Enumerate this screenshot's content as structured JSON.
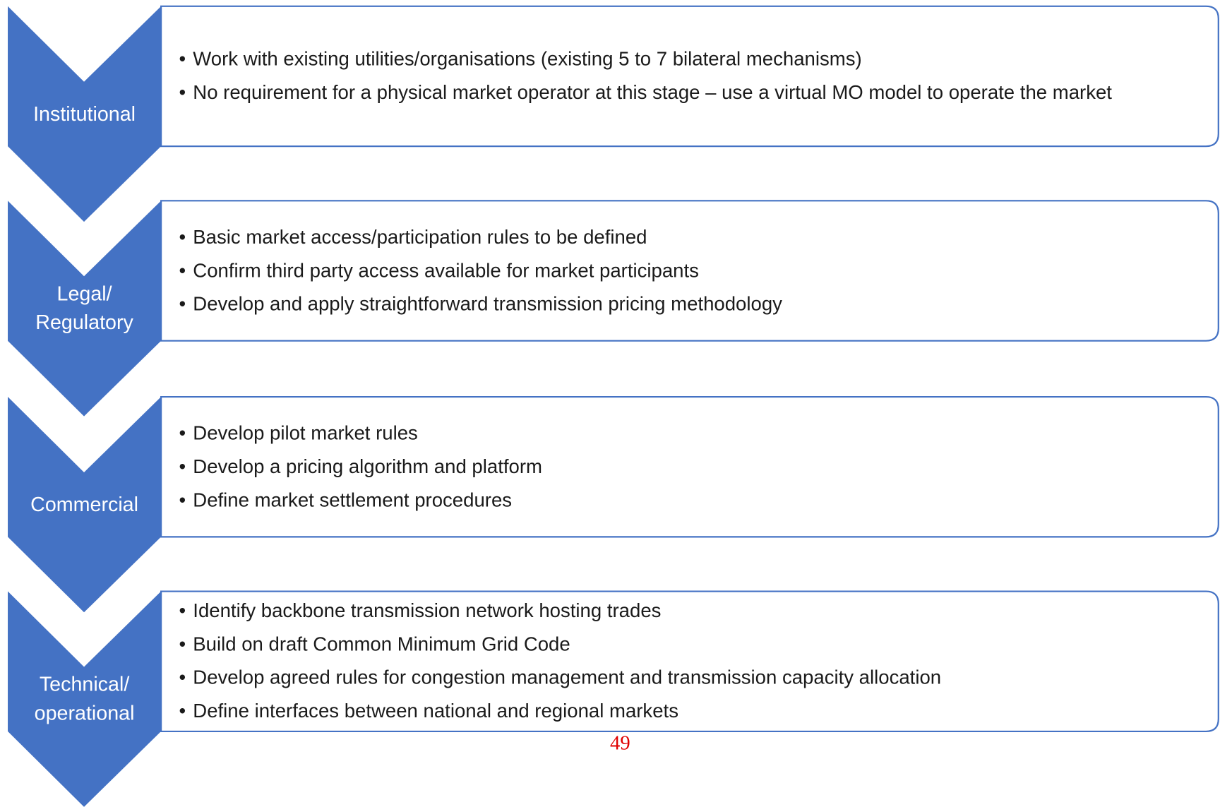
{
  "stages": [
    {
      "label": "Institutional",
      "bullets": [
        "Work with existing utilities/organisations (existing 5 to 7 bilateral mechanisms)",
        "No requirement for a physical market operator at this stage – use a virtual MO model to operate the market"
      ]
    },
    {
      "label": "Legal/\nRegulatory",
      "bullets": [
        "Basic market access/participation rules to be defined",
        "Confirm third party access available for market participants",
        "Develop and apply straightforward transmission pricing methodology"
      ]
    },
    {
      "label": "Commercial",
      "bullets": [
        "Develop pilot market rules",
        "Develop a pricing algorithm and platform",
        "Define market settlement procedures"
      ]
    },
    {
      "label": "Technical/\noperational",
      "bullets": [
        "Identify backbone transmission network hosting trades",
        "Build on draft Common Minimum Grid Code",
        "Develop agreed rules for congestion management and transmission capacity allocation",
        "Define interfaces between national and regional markets"
      ]
    }
  ],
  "page_number": "49"
}
